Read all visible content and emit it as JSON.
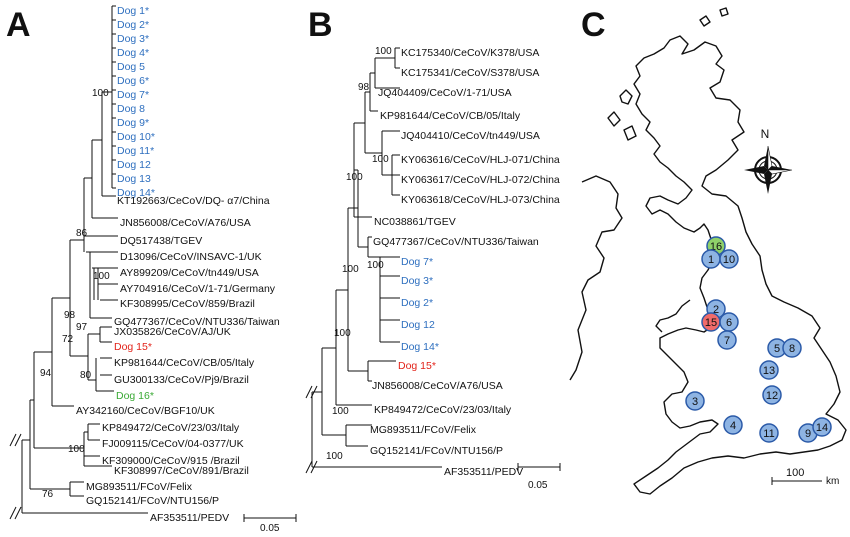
{
  "colors": {
    "black": "#111111",
    "blue": "#2e6fbf",
    "red": "#e2231a",
    "green": "#3aa935",
    "marker_blue": "#8eb4e3",
    "marker_red": "#f06b6b",
    "marker_green": "#8fd16a",
    "marker_stroke": "#2b5aa8"
  },
  "panels": {
    "A": {
      "letter": "A",
      "labels": [
        {
          "text": "Dog 1*",
          "color": "blue"
        },
        {
          "text": "Dog 2*",
          "color": "blue"
        },
        {
          "text": "Dog 3*",
          "color": "blue"
        },
        {
          "text": "Dog 4*",
          "color": "blue"
        },
        {
          "text": "Dog 5",
          "color": "blue"
        },
        {
          "text": "Dog 6*",
          "color": "blue"
        },
        {
          "text": "Dog 7*",
          "color": "blue"
        },
        {
          "text": "Dog 8",
          "color": "blue"
        },
        {
          "text": "Dog 9*",
          "color": "blue"
        },
        {
          "text": "Dog 10*",
          "color": "blue"
        },
        {
          "text": "Dog 11*",
          "color": "blue"
        },
        {
          "text": "Dog 12",
          "color": "blue"
        },
        {
          "text": "Dog 13",
          "color": "blue"
        },
        {
          "text": "Dog 14*",
          "color": "blue"
        },
        {
          "text": "KT192663/CeCoV/DQ- α7/China",
          "color": "black"
        },
        {
          "text": "JN856008/CeCoV/A76/USA",
          "color": "black"
        },
        {
          "text": "DQ517438/TGEV",
          "color": "black"
        },
        {
          "text": "D13096/CeCoV/INSAVC-1/UK",
          "color": "black"
        },
        {
          "text": "AY899209/CeCoV/tn449/USA",
          "color": "black"
        },
        {
          "text": "AY704916/CeCoV/1-71/Germany",
          "color": "black"
        },
        {
          "text": "KF308995/CeCoV/859/Brazil",
          "color": "black"
        },
        {
          "text": "GQ477367/CeCoV/NTU336/Taiwan",
          "color": "black"
        },
        {
          "text": "JX035826/CeCoV/AJ/UK",
          "color": "black"
        },
        {
          "text": "Dog 15*",
          "color": "red"
        },
        {
          "text": "KP981644/CeCoV/CB/05/Italy",
          "color": "black"
        },
        {
          "text": "GU300133/CeCoV/Pj9/Brazil",
          "color": "black"
        },
        {
          "text": "Dog 16*",
          "color": "green"
        },
        {
          "text": "AY342160/CeCoV/BGF10/UK",
          "color": "black"
        },
        {
          "text": "KP849472/CeCoV/23/03/Italy",
          "color": "black"
        },
        {
          "text": "FJ009115/CeCoV/04-0377/UK",
          "color": "black"
        },
        {
          "text": "KF309000/CeCoV/915 /Brazil",
          "color": "black"
        },
        {
          "text": "KF308997/CeCoV/891/Brazil",
          "color": "black"
        },
        {
          "text": "MG893511/FCoV/Felix",
          "color": "black"
        },
        {
          "text": "GQ152141/FCoV/NTU156/P",
          "color": "black"
        },
        {
          "text": "AF353511/PEDV",
          "color": "black"
        }
      ],
      "bootstrap": [
        "100",
        "86",
        "100",
        "98",
        "97",
        "72",
        "80",
        "94",
        "100",
        "76"
      ],
      "scale": "0.05"
    },
    "B": {
      "letter": "B",
      "labels": [
        {
          "text": "KC175340/CeCoV/K378/USA",
          "color": "black"
        },
        {
          "text": "KC175341/CeCoV/S378/USA",
          "color": "black"
        },
        {
          "text": "JQ404409/CeCoV/1-71/USA",
          "color": "black"
        },
        {
          "text": "KP981644/CeCoV/CB/05/Italy",
          "color": "black"
        },
        {
          "text": "JQ404410/CeCoV/tn449/USA",
          "color": "black"
        },
        {
          "text": "KY063616/CeCoV/HLJ-071/China",
          "color": "black"
        },
        {
          "text": "KY063617/CeCoV/HLJ-072/China",
          "color": "black"
        },
        {
          "text": "KY063618/CeCoV/HLJ-073/China",
          "color": "black"
        },
        {
          "text": "NC038861/TGEV",
          "color": "black"
        },
        {
          "text": "GQ477367/CeCoV/NTU336/Taiwan",
          "color": "black"
        },
        {
          "text": "Dog 7*",
          "color": "blue"
        },
        {
          "text": "Dog 3*",
          "color": "blue"
        },
        {
          "text": "Dog 2*",
          "color": "blue"
        },
        {
          "text": "Dog 12",
          "color": "blue"
        },
        {
          "text": "Dog 14*",
          "color": "blue"
        },
        {
          "text": "Dog 15*",
          "color": "red"
        },
        {
          "text": "JN856008/CeCoV/A76/USA",
          "color": "black"
        },
        {
          "text": "KP849472/CeCoV/23/03/Italy",
          "color": "black"
        },
        {
          "text": "MG893511/FCoV/Felix",
          "color": "black"
        },
        {
          "text": "GQ152141/FCoV/NTU156/P",
          "color": "black"
        },
        {
          "text": "AF353511/PEDV",
          "color": "black"
        }
      ],
      "bootstrap": [
        "100",
        "98",
        "100",
        "100",
        "100",
        "100",
        "100",
        "100",
        "100"
      ],
      "scale": "0.05"
    },
    "C": {
      "letter": "C",
      "compass": "N",
      "scale_value": "100",
      "scale_unit": "km",
      "markers": [
        {
          "num": "16",
          "color": "green"
        },
        {
          "num": "1",
          "color": "blue"
        },
        {
          "num": "10",
          "color": "blue"
        },
        {
          "num": "2",
          "color": "blue"
        },
        {
          "num": "15",
          "color": "red"
        },
        {
          "num": "6",
          "color": "blue"
        },
        {
          "num": "7",
          "color": "blue"
        },
        {
          "num": "5",
          "color": "blue"
        },
        {
          "num": "8",
          "color": "blue"
        },
        {
          "num": "13",
          "color": "blue"
        },
        {
          "num": "12",
          "color": "blue"
        },
        {
          "num": "3",
          "color": "blue"
        },
        {
          "num": "4",
          "color": "blue"
        },
        {
          "num": "11",
          "color": "blue"
        },
        {
          "num": "9",
          "color": "blue"
        },
        {
          "num": "14",
          "color": "blue"
        }
      ]
    }
  }
}
